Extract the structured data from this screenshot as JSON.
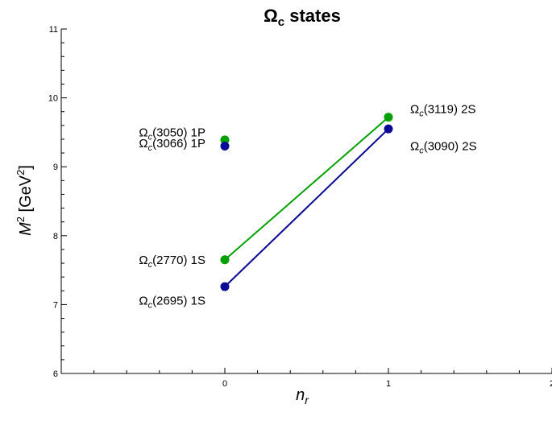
{
  "chart_data": {
    "type": "line",
    "title": "Ω_c states",
    "title_main": "Ω",
    "title_sub": "c",
    "title_rest": " states",
    "xlabel": "n_r",
    "xlabel_main": "n",
    "xlabel_sub": "r",
    "ylabel": "M^2 [GeV^2]",
    "ylabel_parts": {
      "m": "M",
      "exp1": "2",
      "unit_pre": " [GeV",
      "exp2": "2",
      "unit_post": "]"
    },
    "xlim": [
      -1,
      2
    ],
    "ylim": [
      6,
      11
    ],
    "xticks": [
      0,
      1,
      2
    ],
    "xtick_labels": [
      "0",
      "1",
      "2"
    ],
    "yticks": [
      6,
      7,
      8,
      9,
      10,
      11
    ],
    "ytick_labels": [
      "6",
      "7",
      "8",
      "9",
      "10",
      "11"
    ],
    "series": [
      {
        "color": "#00a000",
        "line_points": [
          [
            0,
            7.65
          ],
          [
            1,
            9.72
          ]
        ],
        "extra_points": [
          [
            0,
            9.39
          ]
        ]
      },
      {
        "color": "#0a0a96",
        "line_points": [
          [
            0,
            7.26
          ],
          [
            1,
            9.55
          ]
        ],
        "extra_points": [
          [
            0,
            9.3
          ]
        ]
      }
    ],
    "annotations": [
      {
        "main": "Ω",
        "sub": "c",
        "rest": "(3066) 1P",
        "x": 0,
        "y": 9.39,
        "side": "left",
        "dy": -0.05
      },
      {
        "main": "Ω",
        "sub": "c",
        "rest": "(3050) 1P",
        "x": 0,
        "y": 9.3,
        "side": "left",
        "dy": 0.2
      },
      {
        "main": "Ω",
        "sub": "c",
        "rest": "(2770) 1S",
        "x": 0,
        "y": 7.65,
        "side": "left",
        "dy": 0.0
      },
      {
        "main": "Ω",
        "sub": "c",
        "rest": "(2695) 1S",
        "x": 0,
        "y": 7.26,
        "side": "left",
        "dy": -0.2
      },
      {
        "main": "Ω",
        "sub": "c",
        "rest": "(3119) 2S",
        "x": 1,
        "y": 9.72,
        "side": "right",
        "dy": 0.12
      },
      {
        "main": "Ω",
        "sub": "c",
        "rest": "(3090) 2S",
        "x": 1,
        "y": 9.55,
        "side": "right",
        "dy": -0.25
      }
    ]
  }
}
